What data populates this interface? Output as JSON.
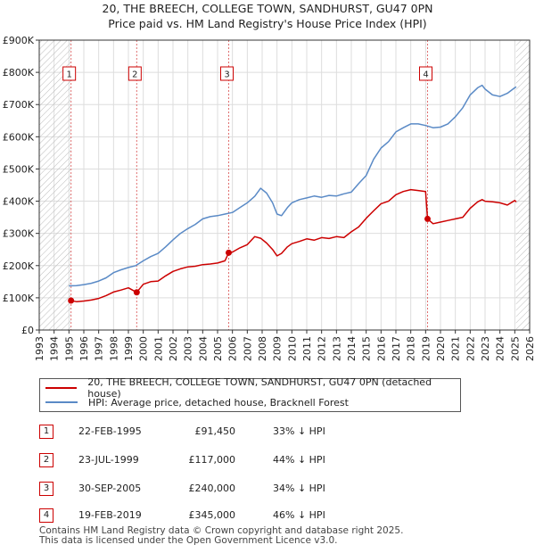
{
  "title_line1": "20, THE BREECH, COLLEGE TOWN, SANDHURST, GU47 0PN",
  "title_line2": "Price paid vs. HM Land Registry's House Price Index (HPI)",
  "chart_data": {
    "type": "line",
    "title": "20, THE BREECH, COLLEGE TOWN, SANDHURST, GU47 0PN — Price paid vs. HM Land Registry's House Price Index (HPI)",
    "xlabel": "",
    "ylabel": "",
    "xlim": [
      1993,
      2026
    ],
    "ylim": [
      0,
      900000
    ],
    "x_ticks": [
      1993,
      1994,
      1995,
      1996,
      1997,
      1998,
      1999,
      2000,
      2001,
      2002,
      2003,
      2004,
      2005,
      2006,
      2007,
      2008,
      2009,
      2010,
      2011,
      2012,
      2013,
      2014,
      2015,
      2016,
      2017,
      2018,
      2019,
      2020,
      2021,
      2022,
      2023,
      2024,
      2025,
      2026
    ],
    "y_ticks": [
      {
        "value": 0,
        "label": "£0"
      },
      {
        "value": 100000,
        "label": "£100K"
      },
      {
        "value": 200000,
        "label": "£200K"
      },
      {
        "value": 300000,
        "label": "£300K"
      },
      {
        "value": 400000,
        "label": "£400K"
      },
      {
        "value": 500000,
        "label": "£500K"
      },
      {
        "value": 600000,
        "label": "£600K"
      },
      {
        "value": 700000,
        "label": "£700K"
      },
      {
        "value": 800000,
        "label": "£800K"
      },
      {
        "value": 900000,
        "label": "£900K"
      }
    ],
    "grid": true,
    "hatched_ranges": [
      [
        1993,
        1995.14
      ],
      [
        2025.08,
        2026
      ]
    ],
    "series": [
      {
        "name": "20, THE BREECH, COLLEGE TOWN, SANDHURST, GU47 0PN (detached house)",
        "color": "#cc0000",
        "x": [
          1995.14,
          1995.5,
          1996,
          1996.5,
          1997,
          1997.5,
          1998,
          1998.5,
          1999,
          1999.56,
          2000,
          2000.5,
          2001,
          2001.5,
          2002,
          2002.5,
          2003,
          2003.5,
          2004,
          2004.5,
          2005,
          2005.5,
          2005.75,
          2006,
          2006.5,
          2007,
          2007.5,
          2007.9,
          2008.3,
          2008.7,
          2009,
          2009.3,
          2009.7,
          2010,
          2010.5,
          2011,
          2011.5,
          2012,
          2012.5,
          2013,
          2013.5,
          2014,
          2014.5,
          2015,
          2015.5,
          2016,
          2016.5,
          2017,
          2017.5,
          2018,
          2018.5,
          2019.0,
          2019.13,
          2019.5,
          2020,
          2020.5,
          2021,
          2021.5,
          2022,
          2022.5,
          2022.8,
          2023,
          2023.5,
          2024,
          2024.5,
          2025,
          2025.1
        ],
        "values": [
          91450,
          88000,
          90000,
          93000,
          98000,
          107000,
          118000,
          124000,
          131000,
          117000,
          142000,
          150000,
          152000,
          168000,
          182000,
          190000,
          196000,
          198000,
          203000,
          205000,
          208000,
          215000,
          240000,
          242000,
          255000,
          265000,
          290000,
          285000,
          270000,
          250000,
          230000,
          238000,
          258000,
          268000,
          275000,
          283000,
          279000,
          287000,
          284000,
          290000,
          287000,
          305000,
          320000,
          347000,
          370000,
          392000,
          400000,
          420000,
          430000,
          436000,
          433000,
          430000,
          345000,
          330000,
          335000,
          340000,
          345000,
          350000,
          378000,
          398000,
          405000,
          400000,
          398000,
          395000,
          388000,
          402000,
          398000
        ]
      },
      {
        "name": "HPI: Average price, detached house, Bracknell Forest",
        "color": "#5a8ac6",
        "x": [
          1995.0,
          1995.5,
          1996,
          1996.5,
          1997,
          1997.5,
          1998,
          1998.5,
          1999,
          1999.5,
          2000,
          2000.5,
          2001,
          2001.5,
          2002,
          2002.5,
          2003,
          2003.5,
          2004,
          2004.5,
          2005,
          2005.5,
          2006,
          2006.5,
          2007,
          2007.5,
          2007.9,
          2008.3,
          2008.7,
          2009,
          2009.3,
          2009.7,
          2010,
          2010.5,
          2011,
          2011.5,
          2012,
          2012.5,
          2013,
          2013.5,
          2014,
          2014.5,
          2015,
          2015.5,
          2016,
          2016.5,
          2017,
          2017.5,
          2018,
          2018.5,
          2019,
          2019.5,
          2020,
          2020.5,
          2021,
          2021.5,
          2022,
          2022.5,
          2022.8,
          2023,
          2023.5,
          2024,
          2024.5,
          2025,
          2025.1
        ],
        "values": [
          137000,
          138000,
          141000,
          145000,
          152000,
          162000,
          178000,
          187000,
          194000,
          200000,
          215000,
          228000,
          238000,
          258000,
          280000,
          300000,
          315000,
          328000,
          345000,
          352000,
          355000,
          360000,
          365000,
          380000,
          395000,
          415000,
          440000,
          425000,
          395000,
          360000,
          355000,
          380000,
          395000,
          405000,
          410000,
          416000,
          412000,
          418000,
          416000,
          423000,
          428000,
          455000,
          480000,
          530000,
          565000,
          585000,
          615000,
          628000,
          640000,
          640000,
          635000,
          628000,
          630000,
          640000,
          662000,
          690000,
          730000,
          752000,
          760000,
          748000,
          730000,
          725000,
          735000,
          752000,
          755000
        ]
      }
    ],
    "annotations": [
      {
        "label": "1",
        "x": 1995.14,
        "value": 91450
      },
      {
        "label": "2",
        "x": 1999.56,
        "value": 117000
      },
      {
        "label": "3",
        "x": 2005.75,
        "value": 240000
      },
      {
        "label": "4",
        "x": 2019.13,
        "value": 345000
      }
    ]
  },
  "legend": {
    "property_label": "20, THE BREECH, COLLEGE TOWN, SANDHURST, GU47 0PN (detached house)",
    "hpi_label": "HPI: Average price, detached house, Bracknell Forest",
    "property_color": "#cc0000",
    "hpi_color": "#5a8ac6"
  },
  "sales": [
    {
      "num": "1",
      "date": "22-FEB-1995",
      "price": "£91,450",
      "hpi": "33% ↓ HPI"
    },
    {
      "num": "2",
      "date": "23-JUL-1999",
      "price": "£117,000",
      "hpi": "44% ↓ HPI"
    },
    {
      "num": "3",
      "date": "30-SEP-2005",
      "price": "£240,000",
      "hpi": "34% ↓ HPI"
    },
    {
      "num": "4",
      "date": "19-FEB-2019",
      "price": "£345,000",
      "hpi": "46% ↓ HPI"
    }
  ],
  "footer": {
    "line1": "Contains HM Land Registry data © Crown copyright and database right 2025.",
    "line2": "This data is licensed under the Open Government Licence v3.0."
  }
}
